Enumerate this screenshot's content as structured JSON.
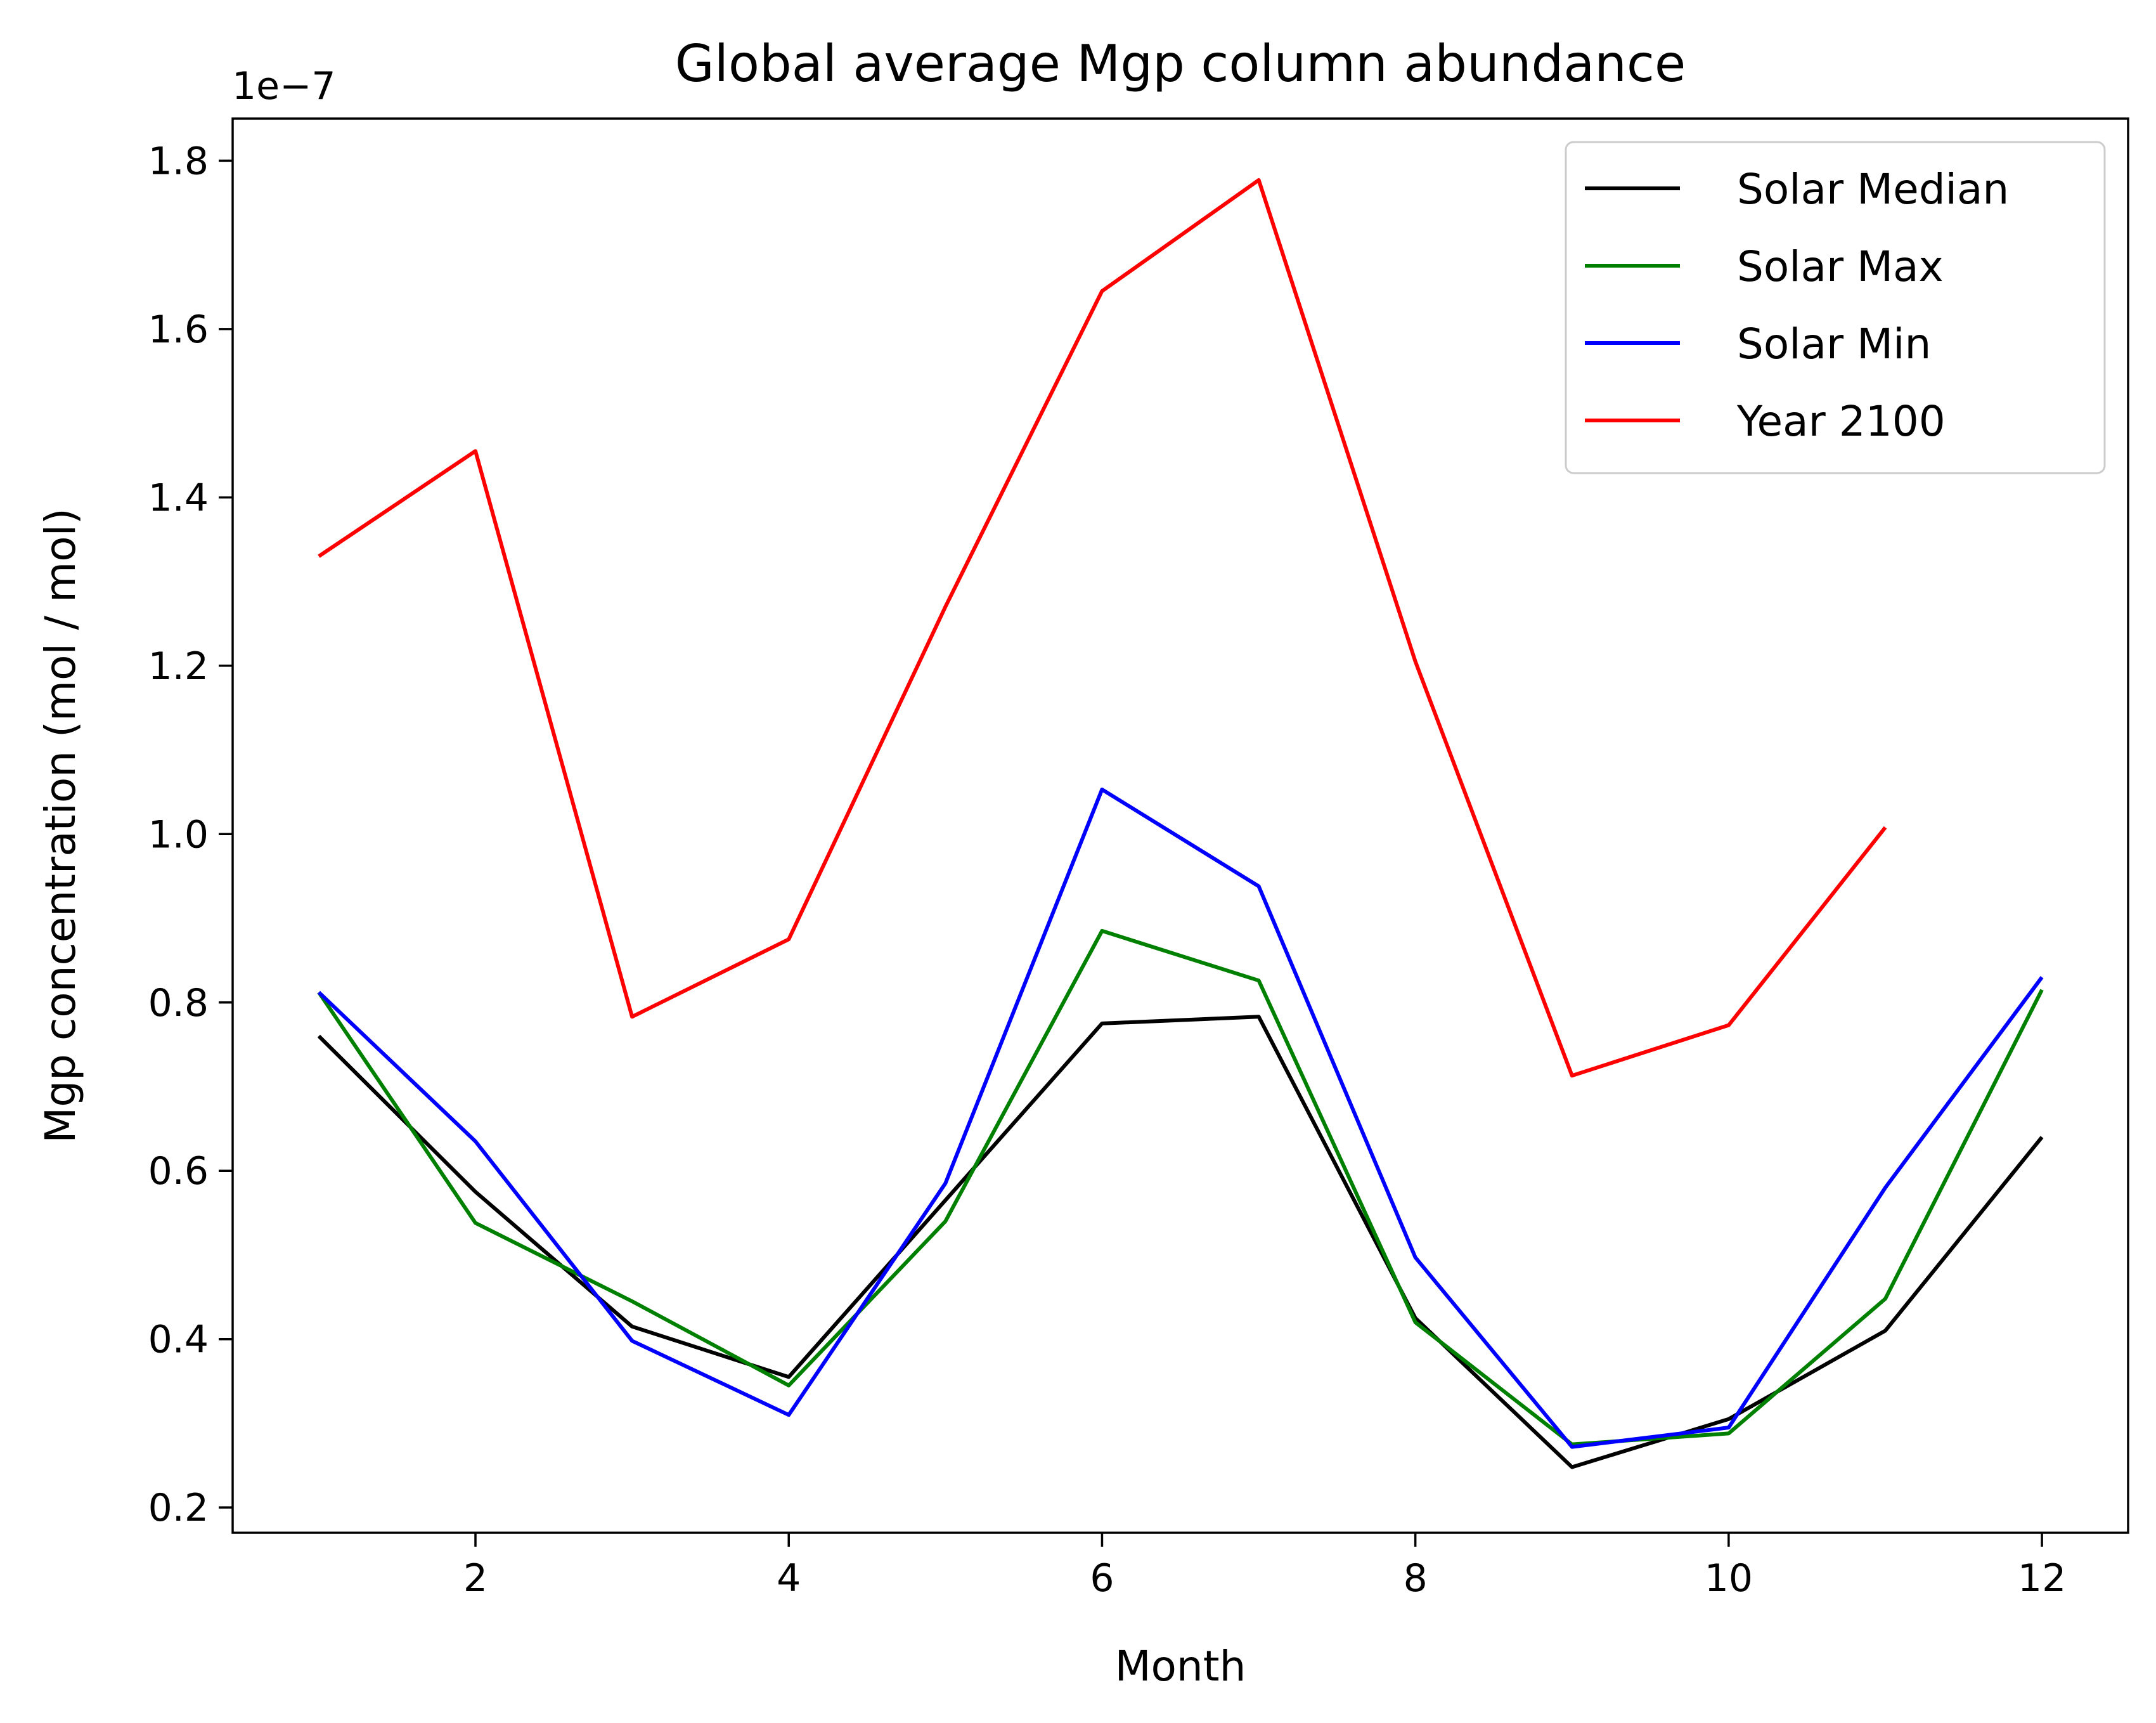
{
  "chart_data": {
    "type": "line",
    "title": "Global average Mgp column abundance",
    "xlabel": "Month",
    "ylabel": "Mgp concentration (mol / mol)",
    "y_offset_label": "1e−7",
    "xlim": [
      0.45,
      12.55
    ],
    "ylim": [
      0.17,
      1.85
    ],
    "x_ticks": [
      2,
      4,
      6,
      8,
      10,
      12
    ],
    "x_tick_labels": [
      "2",
      "4",
      "6",
      "8",
      "10",
      "12"
    ],
    "y_ticks": [
      0.2,
      0.4,
      0.6,
      0.8,
      1.0,
      1.2,
      1.4,
      1.6,
      1.8
    ],
    "y_tick_labels": [
      "0.2",
      "0.4",
      "0.6",
      "0.8",
      "1.0",
      "1.2",
      "1.4",
      "1.6",
      "1.8"
    ],
    "grid": false,
    "legend_position": "top-right",
    "series": [
      {
        "name": "Solar Median",
        "color": "#000000",
        "x": [
          1,
          2,
          3,
          4,
          5,
          6,
          7,
          8,
          9,
          10,
          11,
          12
        ],
        "y": [
          0.76,
          0.575,
          0.415,
          0.355,
          0.565,
          0.775,
          0.783,
          0.425,
          0.248,
          0.305,
          0.41,
          0.64
        ]
      },
      {
        "name": "Solar Max",
        "color": "#008000",
        "x": [
          1,
          2,
          3,
          4,
          5,
          6,
          7,
          8,
          9,
          10,
          11,
          12
        ],
        "y": [
          0.812,
          0.538,
          0.445,
          0.345,
          0.54,
          0.885,
          0.826,
          0.42,
          0.275,
          0.288,
          0.448,
          0.815
        ]
      },
      {
        "name": "Solar Min",
        "color": "#0000ff",
        "x": [
          1,
          2,
          3,
          4,
          5,
          6,
          7,
          8,
          9,
          10,
          11,
          12
        ],
        "y": [
          0.812,
          0.635,
          0.398,
          0.31,
          0.585,
          1.053,
          0.938,
          0.497,
          0.272,
          0.295,
          0.58,
          0.83
        ]
      },
      {
        "name": "Year 2100",
        "color": "#ff0000",
        "x": [
          1,
          2,
          3,
          4,
          5,
          6,
          7,
          8,
          9,
          10,
          11
        ],
        "y": [
          1.33,
          1.455,
          0.783,
          0.875,
          1.27,
          1.645,
          1.777,
          1.205,
          0.713,
          0.773,
          1.008
        ]
      }
    ]
  }
}
